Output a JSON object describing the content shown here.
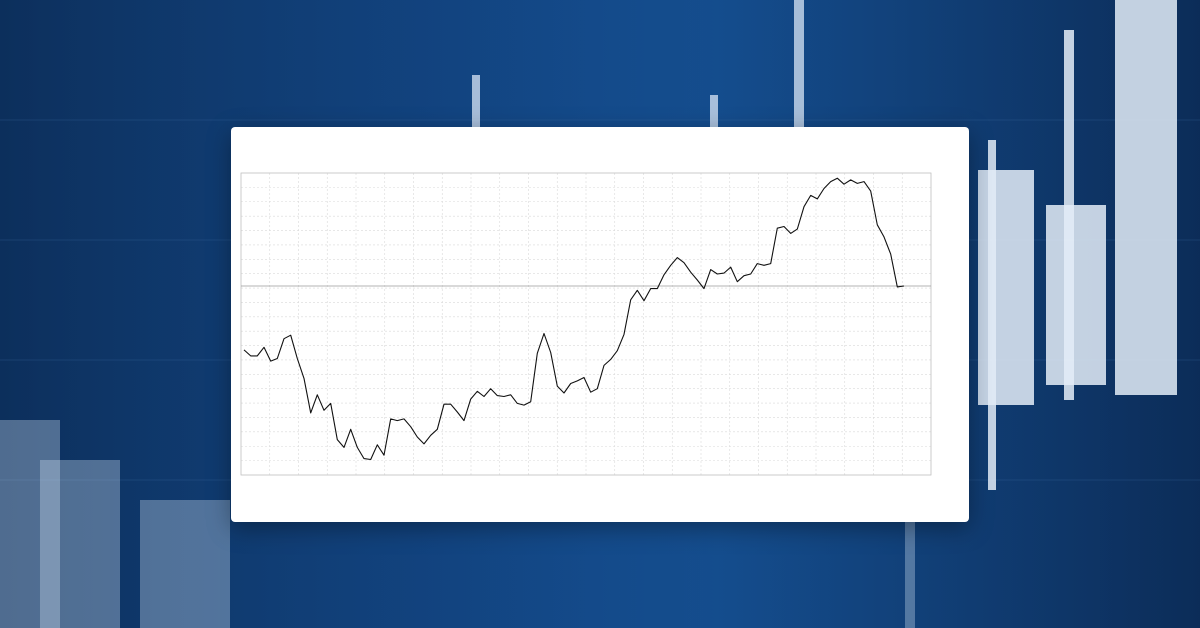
{
  "chart_data": {
    "type": "line",
    "title": "",
    "xlabel": "",
    "ylabel": "",
    "grid": true,
    "legend": "",
    "header_text": "",
    "x_tick_labels": [],
    "y_tick_labels": [],
    "current_price_label": "",
    "series": [
      {
        "values": [
          72.5,
          71.8,
          71.8,
          72.8,
          71.2,
          71.5,
          73.8,
          74.2,
          71.5,
          69.2,
          65.2,
          67.3,
          65.5,
          66.3,
          62.1,
          61.2,
          63.3,
          61.2,
          59.9,
          59.8,
          61.5,
          60.3,
          64.5,
          64.3,
          64.5,
          63.6,
          62.4,
          61.6,
          62.6,
          63.3,
          66.2,
          66.2,
          65.3,
          64.3,
          66.8,
          67.7,
          67.1,
          68.0,
          67.2,
          67.1,
          67.3,
          66.3,
          66.1,
          66.5,
          72.1,
          74.4,
          72.2,
          68.3,
          67.5,
          68.6,
          68.9,
          69.3,
          67.6,
          68.0,
          70.7,
          71.4,
          72.4,
          74.3,
          78.3,
          79.4,
          78.2,
          79.6,
          79.6,
          81.2,
          82.3,
          83.2,
          82.6,
          81.5,
          80.6,
          79.6,
          81.8,
          81.3,
          81.4,
          82.1,
          80.4,
          81.1,
          81.3,
          82.5,
          82.3,
          82.5,
          86.6,
          86.8,
          86.0,
          86.5,
          89.1,
          90.4,
          90.0,
          91.2,
          92.0,
          92.4,
          91.7,
          92.2,
          91.8,
          92.0,
          90.9,
          87.0,
          85.6,
          83.6,
          79.8,
          79.9
        ]
      }
    ],
    "ylim": [
      58,
      93
    ]
  },
  "colors": {
    "line": "#111111",
    "grid": "#d9d9d9",
    "background": "#ffffff"
  }
}
